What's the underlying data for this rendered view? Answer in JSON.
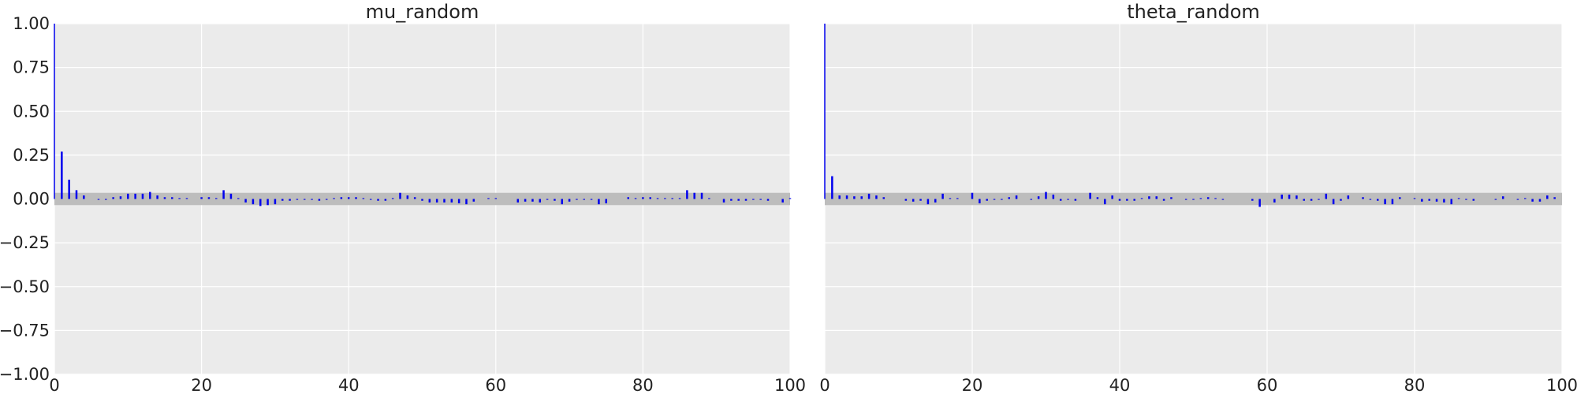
{
  "chart_data": [
    {
      "type": "bar",
      "title": "mu_random",
      "xlabel": "",
      "ylabel": "",
      "xlim": [
        0,
        100
      ],
      "ylim": [
        -1,
        1
      ],
      "xticks": [
        "0",
        "20",
        "40",
        "60",
        "80",
        "100"
      ],
      "yticks": [
        "1.00",
        "0.75",
        "0.50",
        "0.25",
        "0.00",
        "−0.25",
        "−0.50",
        "−0.75",
        "−1.00"
      ],
      "grid": true,
      "confidence_band": [
        -0.035,
        0.035
      ],
      "lags": [
        0,
        1,
        2,
        3,
        4,
        5,
        6,
        7,
        8,
        9,
        10,
        11,
        12,
        13,
        14,
        15,
        16,
        17,
        18,
        19,
        20,
        21,
        22,
        23,
        24,
        25,
        26,
        27,
        28,
        29,
        30,
        31,
        32,
        33,
        34,
        35,
        36,
        37,
        38,
        39,
        40,
        41,
        42,
        43,
        44,
        45,
        46,
        47,
        48,
        49,
        50,
        51,
        52,
        53,
        54,
        55,
        56,
        57,
        58,
        59,
        60,
        61,
        62,
        63,
        64,
        65,
        66,
        67,
        68,
        69,
        70,
        71,
        72,
        73,
        74,
        75,
        76,
        77,
        78,
        79,
        80,
        81,
        82,
        83,
        84,
        85,
        86,
        87,
        88,
        89,
        90,
        91,
        92,
        93,
        94,
        95,
        96,
        97,
        98,
        99,
        100
      ],
      "values": [
        1.0,
        0.27,
        0.11,
        0.05,
        0.02,
        0.0,
        -0.005,
        -0.005,
        0.01,
        0.015,
        0.03,
        0.03,
        0.03,
        0.04,
        0.02,
        0.01,
        0.01,
        0.005,
        0.005,
        0.0,
        0.01,
        0.01,
        0.005,
        0.05,
        0.03,
        0.005,
        -0.02,
        -0.03,
        -0.04,
        -0.035,
        -0.03,
        -0.01,
        -0.01,
        -0.005,
        -0.005,
        -0.005,
        -0.01,
        -0.005,
        0.005,
        0.01,
        0.01,
        0.01,
        0.005,
        -0.005,
        -0.01,
        -0.01,
        0.005,
        0.035,
        0.02,
        0.01,
        -0.01,
        -0.02,
        -0.02,
        -0.02,
        -0.02,
        -0.025,
        -0.03,
        -0.015,
        0.0,
        0.005,
        0.005,
        0.0,
        0.0,
        -0.02,
        -0.015,
        -0.015,
        -0.02,
        -0.005,
        -0.01,
        -0.03,
        -0.015,
        -0.005,
        -0.005,
        -0.005,
        -0.03,
        -0.025,
        0.0,
        0.0,
        0.01,
        0.005,
        0.01,
        0.01,
        0.005,
        0.005,
        0.005,
        0.005,
        0.05,
        0.035,
        0.035,
        0.005,
        0.0,
        -0.02,
        -0.01,
        -0.01,
        -0.01,
        -0.005,
        -0.005,
        -0.01,
        0.0,
        -0.02,
        0.005
      ]
    },
    {
      "type": "bar",
      "title": "theta_random",
      "xlabel": "",
      "ylabel": "",
      "xlim": [
        0,
        100
      ],
      "ylim": [
        -1,
        1
      ],
      "xticks": [
        "0",
        "20",
        "40",
        "60",
        "80",
        "100"
      ],
      "grid": true,
      "confidence_band": [
        -0.035,
        0.035
      ],
      "lags": [
        0,
        1,
        2,
        3,
        4,
        5,
        6,
        7,
        8,
        9,
        10,
        11,
        12,
        13,
        14,
        15,
        16,
        17,
        18,
        19,
        20,
        21,
        22,
        23,
        24,
        25,
        26,
        27,
        28,
        29,
        30,
        31,
        32,
        33,
        34,
        35,
        36,
        37,
        38,
        39,
        40,
        41,
        42,
        43,
        44,
        45,
        46,
        47,
        48,
        49,
        50,
        51,
        52,
        53,
        54,
        55,
        56,
        57,
        58,
        59,
        60,
        61,
        62,
        63,
        64,
        65,
        66,
        67,
        68,
        69,
        70,
        71,
        72,
        73,
        74,
        75,
        76,
        77,
        78,
        79,
        80,
        81,
        82,
        83,
        84,
        85,
        86,
        87,
        88,
        89,
        90,
        91,
        92,
        93,
        94,
        95,
        96,
        97,
        98,
        99,
        100
      ],
      "values": [
        1.0,
        0.13,
        0.02,
        0.02,
        0.015,
        0.015,
        0.03,
        0.02,
        0.01,
        0.0,
        0.0,
        -0.01,
        -0.015,
        -0.01,
        -0.03,
        -0.02,
        0.03,
        0.005,
        0.005,
        0.0,
        0.035,
        -0.025,
        -0.01,
        -0.005,
        -0.005,
        0.01,
        0.02,
        0.0,
        -0.005,
        0.015,
        0.04,
        0.025,
        -0.01,
        -0.005,
        -0.01,
        0.0,
        0.035,
        0.01,
        -0.03,
        0.02,
        -0.01,
        -0.01,
        -0.01,
        0.005,
        0.015,
        0.015,
        -0.01,
        0.01,
        0.0,
        -0.005,
        -0.005,
        0.005,
        0.01,
        0.005,
        -0.005,
        0.0,
        0.0,
        0.0,
        -0.01,
        -0.045,
        0.0,
        -0.02,
        0.025,
        0.025,
        0.02,
        -0.01,
        -0.01,
        -0.005,
        0.03,
        -0.03,
        -0.01,
        0.02,
        0.0,
        0.01,
        -0.005,
        -0.01,
        -0.03,
        -0.03,
        0.01,
        0.0,
        0.005,
        -0.015,
        -0.01,
        -0.015,
        -0.02,
        -0.03,
        0.005,
        -0.005,
        -0.01,
        0.0,
        0.0,
        -0.005,
        0.015,
        0.0,
        -0.005,
        0.005,
        -0.015,
        -0.015,
        0.02,
        0.01,
        0.0
      ]
    }
  ]
}
